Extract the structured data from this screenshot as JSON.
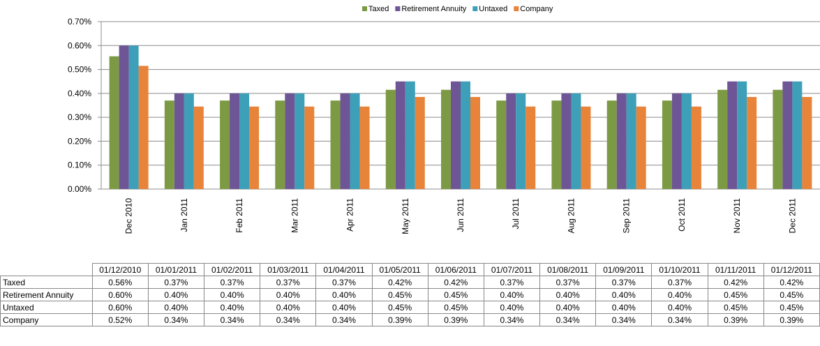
{
  "chart_data": {
    "type": "bar",
    "categories": [
      "Dec 2010",
      "Jan 2011",
      "Feb 2011",
      "Mar 2011",
      "Apr 2011",
      "May 2011",
      "Jun 2011",
      "Jul 2011",
      "Aug 2011",
      "Sep 2011",
      "Oct 2011",
      "Nov 2011",
      "Dec 2011"
    ],
    "series": [
      {
        "name": "Taxed",
        "color": "#7c9a44",
        "values": [
          0.555,
          0.37,
          0.37,
          0.37,
          0.37,
          0.415,
          0.415,
          0.37,
          0.37,
          0.37,
          0.37,
          0.415,
          0.415
        ]
      },
      {
        "name": "Retirement Annuity",
        "color": "#6e5595",
        "values": [
          0.6,
          0.4,
          0.4,
          0.4,
          0.4,
          0.45,
          0.45,
          0.4,
          0.4,
          0.4,
          0.4,
          0.45,
          0.45
        ]
      },
      {
        "name": "Untaxed",
        "color": "#3e9fb8",
        "values": [
          0.6,
          0.4,
          0.4,
          0.4,
          0.4,
          0.45,
          0.45,
          0.4,
          0.4,
          0.4,
          0.4,
          0.45,
          0.45
        ]
      },
      {
        "name": "Company",
        "color": "#e8833a",
        "values": [
          0.515,
          0.345,
          0.345,
          0.345,
          0.345,
          0.385,
          0.385,
          0.345,
          0.345,
          0.345,
          0.345,
          0.385,
          0.385
        ]
      }
    ],
    "ylim": [
      0,
      0.7
    ],
    "yticks": [
      {
        "value": 0,
        "label": "0.00%"
      },
      {
        "value": 0.1,
        "label": "0.10%"
      },
      {
        "value": 0.2,
        "label": "0.20%"
      },
      {
        "value": 0.3,
        "label": "0.30%"
      },
      {
        "value": 0.4,
        "label": "0.40%"
      },
      {
        "value": 0.5,
        "label": "0.50%"
      },
      {
        "value": 0.6,
        "label": "0.60%"
      },
      {
        "value": 0.7,
        "label": "0.70%"
      }
    ],
    "grid": true,
    "legend": "top"
  },
  "table": {
    "columns": [
      "01/12/2010",
      "01/01/2011",
      "01/02/2011",
      "01/03/2011",
      "01/04/2011",
      "01/05/2011",
      "01/06/2011",
      "01/07/2011",
      "01/08/2011",
      "01/09/2011",
      "01/10/2011",
      "01/11/2011",
      "01/12/2011"
    ],
    "rows": [
      [
        "Taxed",
        "0.56%",
        "0.37%",
        "0.37%",
        "0.37%",
        "0.37%",
        "0.42%",
        "0.42%",
        "0.37%",
        "0.37%",
        "0.37%",
        "0.37%",
        "0.42%",
        "0.42%"
      ],
      [
        "Retirement Annuity",
        "0.60%",
        "0.40%",
        "0.40%",
        "0.40%",
        "0.40%",
        "0.45%",
        "0.45%",
        "0.40%",
        "0.40%",
        "0.40%",
        "0.40%",
        "0.45%",
        "0.45%"
      ],
      [
        "Untaxed",
        "0.60%",
        "0.40%",
        "0.40%",
        "0.40%",
        "0.40%",
        "0.45%",
        "0.45%",
        "0.40%",
        "0.40%",
        "0.40%",
        "0.40%",
        "0.45%",
        "0.45%"
      ],
      [
        "Company",
        "0.52%",
        "0.34%",
        "0.34%",
        "0.34%",
        "0.34%",
        "0.39%",
        "0.39%",
        "0.34%",
        "0.34%",
        "0.34%",
        "0.34%",
        "0.39%",
        "0.39%"
      ]
    ]
  }
}
